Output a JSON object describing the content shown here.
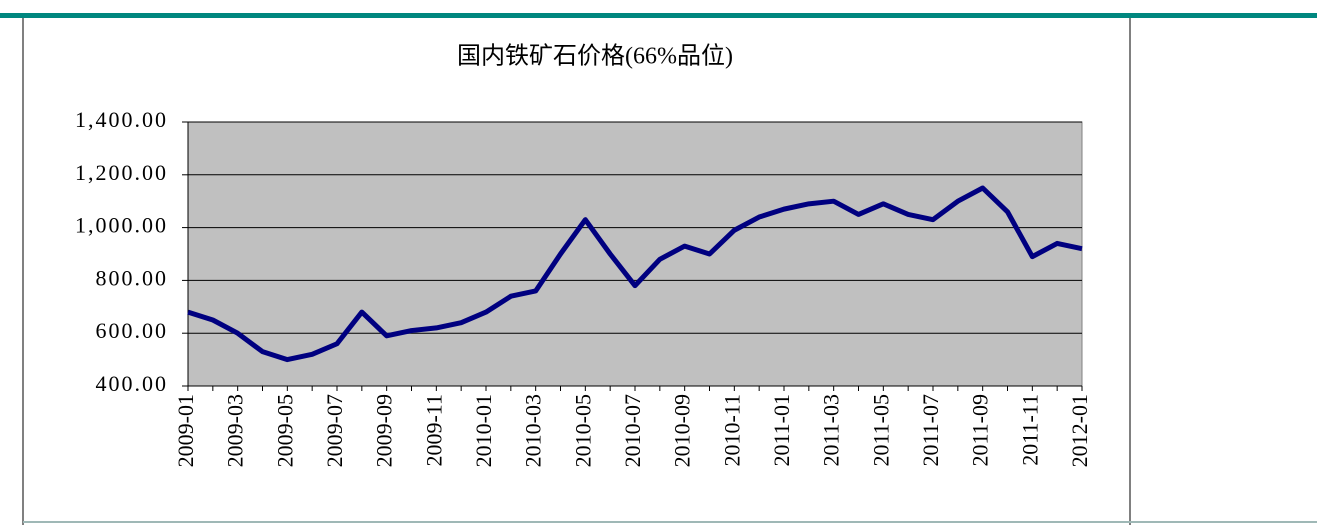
{
  "chart_data": {
    "type": "line",
    "title": "国内铁矿石价格(66%品位)",
    "categories": [
      "2009-01",
      null,
      "2009-03",
      null,
      "2009-05",
      null,
      "2009-07",
      null,
      "2009-09",
      null,
      "2009-11",
      null,
      "2010-01",
      null,
      "2010-03",
      null,
      "2010-05",
      null,
      "2010-07",
      null,
      "2010-09",
      null,
      "2010-11",
      null,
      "2011-01",
      null,
      "2011-03",
      null,
      "2011-05",
      null,
      "2011-07",
      null,
      "2011-09",
      null,
      "2011-11",
      null,
      "2012-01"
    ],
    "series": [
      {
        "color": "#000080",
        "values": [
          680,
          650,
          600,
          530,
          500,
          520,
          560,
          680,
          590,
          610,
          620,
          640,
          680,
          740,
          760,
          900,
          1030,
          900,
          780,
          880,
          930,
          900,
          990,
          1040,
          1070,
          1090,
          1100,
          1050,
          1090,
          1050,
          1030,
          1100,
          1150,
          1060,
          890,
          940,
          920
        ]
      }
    ],
    "ylim": [
      400,
      1400
    ],
    "yticks": [
      {
        "value": 400,
        "label": "400.00"
      },
      {
        "value": 600,
        "label": "600.00"
      },
      {
        "value": 800,
        "label": "800.00"
      },
      {
        "value": 1000,
        "label": "1,000.00"
      },
      {
        "value": 1200,
        "label": "1,200.00"
      },
      {
        "value": 1400,
        "label": "1,400.00"
      }
    ],
    "grid": true,
    "background": "#c0c0c0"
  }
}
